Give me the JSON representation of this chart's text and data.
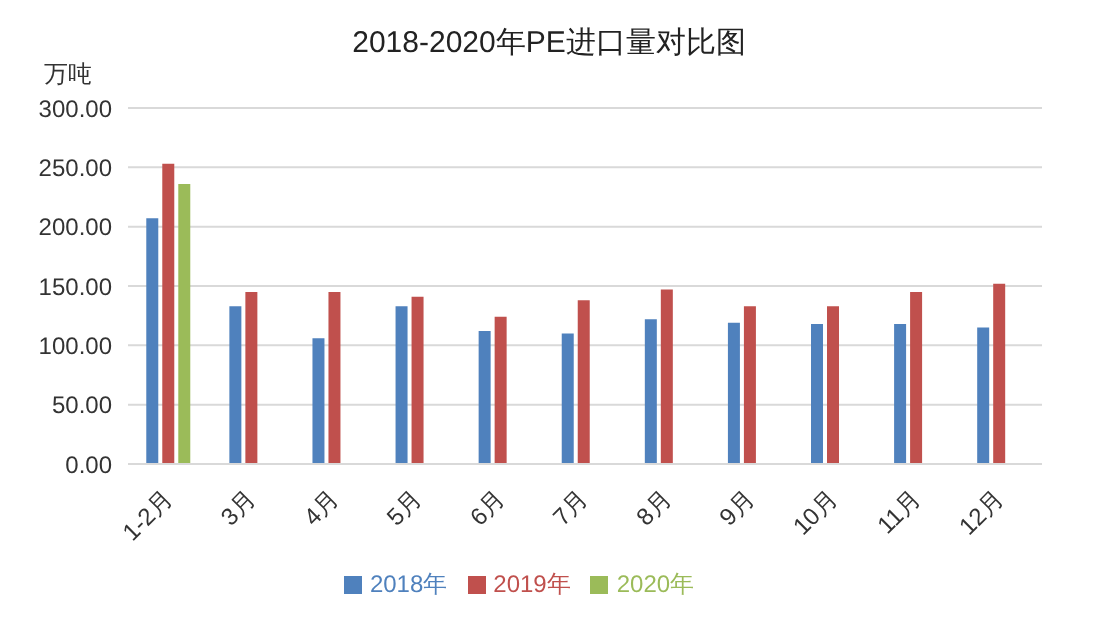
{
  "chart_data": {
    "type": "bar",
    "title": "2018-2020年PE进口量对比图",
    "ylabel": "万吨",
    "categories": [
      "1-2月",
      "3月",
      "4月",
      "5月",
      "6月",
      "7月",
      "8月",
      "9月",
      "10月",
      "11月",
      "12月"
    ],
    "series": [
      {
        "name": "2018年",
        "color": "#4f81bd",
        "values": [
          207,
          133,
          106,
          133,
          112,
          110,
          122,
          119,
          118,
          118,
          115
        ]
      },
      {
        "name": "2019年",
        "color": "#c0504d",
        "values": [
          253,
          145,
          145,
          141,
          124,
          138,
          147,
          133,
          133,
          145,
          152
        ]
      },
      {
        "name": "2020年",
        "color": "#9bbb59",
        "values": [
          236,
          null,
          null,
          null,
          null,
          null,
          null,
          null,
          null,
          null,
          null
        ]
      }
    ],
    "ylim": [
      0,
      300
    ],
    "yticks": [
      {
        "value": 0,
        "label": "0.00"
      },
      {
        "value": 50,
        "label": "50.00"
      },
      {
        "value": 100,
        "label": "100.00"
      },
      {
        "value": 150,
        "label": "150.00"
      },
      {
        "value": 200,
        "label": "200.00"
      },
      {
        "value": 250,
        "label": "250.00"
      },
      {
        "value": 300,
        "label": "300.00"
      }
    ],
    "grid": "y",
    "legend": "bottom"
  }
}
